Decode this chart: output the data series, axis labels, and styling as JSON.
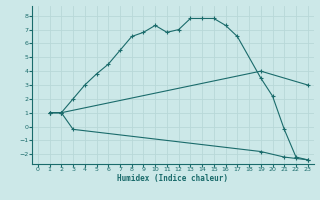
{
  "xlabel": "Humidex (Indice chaleur)",
  "bg_color": "#cce8e8",
  "grid_color": "#b8d8d8",
  "line_color": "#1a6b6b",
  "xlim": [
    -0.5,
    23.5
  ],
  "ylim": [
    -2.7,
    8.7
  ],
  "xticks": [
    0,
    1,
    2,
    3,
    4,
    5,
    6,
    7,
    8,
    9,
    10,
    11,
    12,
    13,
    14,
    15,
    16,
    17,
    18,
    19,
    20,
    21,
    22,
    23
  ],
  "yticks": [
    -2,
    -1,
    0,
    1,
    2,
    3,
    4,
    5,
    6,
    7,
    8
  ],
  "curve1_x": [
    1,
    2,
    3,
    4,
    5,
    6,
    7,
    8,
    9,
    10,
    11,
    12,
    13,
    14,
    15,
    16,
    17,
    19,
    20,
    21,
    22,
    23
  ],
  "curve1_y": [
    1.0,
    1.0,
    2.0,
    3.0,
    3.8,
    4.5,
    5.5,
    6.5,
    6.8,
    7.3,
    6.8,
    7.0,
    7.8,
    7.8,
    7.8,
    7.3,
    6.5,
    3.5,
    2.2,
    -0.2,
    -2.2,
    -2.4
  ],
  "curve2_x": [
    1,
    2,
    19,
    23
  ],
  "curve2_y": [
    1.0,
    1.0,
    4.0,
    3.0
  ],
  "curve3_x": [
    1,
    2,
    3,
    19,
    21,
    22,
    23
  ],
  "curve3_y": [
    1.0,
    1.0,
    -0.2,
    -1.8,
    -2.2,
    -2.3,
    -2.4
  ]
}
